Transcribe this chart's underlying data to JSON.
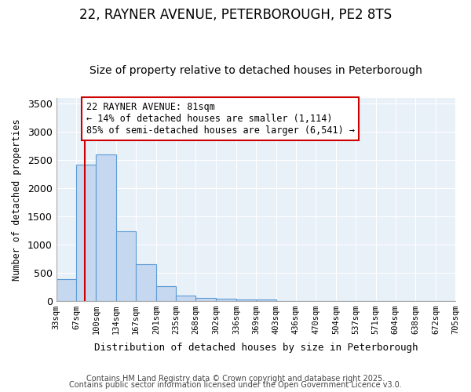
{
  "title1": "22, RAYNER AVENUE, PETERBOROUGH, PE2 8TS",
  "title2": "Size of property relative to detached houses in Peterborough",
  "xlabel": "Distribution of detached houses by size in Peterborough",
  "ylabel": "Number of detached properties",
  "bins": [
    33,
    67,
    100,
    134,
    167,
    201,
    235,
    268,
    302,
    336,
    369,
    403,
    436,
    470,
    504,
    537,
    571,
    604,
    638,
    672,
    705
  ],
  "bin_labels": [
    "33sqm",
    "67sqm",
    "100sqm",
    "134sqm",
    "167sqm",
    "201sqm",
    "235sqm",
    "268sqm",
    "302sqm",
    "336sqm",
    "369sqm",
    "403sqm",
    "436sqm",
    "470sqm",
    "504sqm",
    "537sqm",
    "571sqm",
    "604sqm",
    "638sqm",
    "672sqm",
    "705sqm"
  ],
  "counts": [
    390,
    2420,
    2600,
    1240,
    650,
    265,
    95,
    55,
    50,
    35,
    25,
    0,
    0,
    0,
    0,
    0,
    0,
    0,
    0,
    0
  ],
  "bar_color": "#c5d8ef",
  "bar_edge_color": "#5b9bd5",
  "property_value": 81,
  "property_line_color": "#cc0000",
  "annotation_line1": "22 RAYNER AVENUE: 81sqm",
  "annotation_line2": "← 14% of detached houses are smaller (1,114)",
  "annotation_line3": "85% of semi-detached houses are larger (6,541) →",
  "annotation_box_color": "#ffffff",
  "annotation_box_edge": "#cc0000",
  "ylim": [
    0,
    3600
  ],
  "yticks": [
    0,
    500,
    1000,
    1500,
    2000,
    2500,
    3000,
    3500
  ],
  "footer1": "Contains HM Land Registry data © Crown copyright and database right 2025.",
  "footer2": "Contains public sector information licensed under the Open Government Licence v3.0.",
  "bg_color": "#ffffff",
  "plot_bg_color": "#e8f0f8",
  "title1_fontsize": 12,
  "title2_fontsize": 10,
  "grid_color": "#ffffff",
  "annotation_fontsize": 8.5
}
